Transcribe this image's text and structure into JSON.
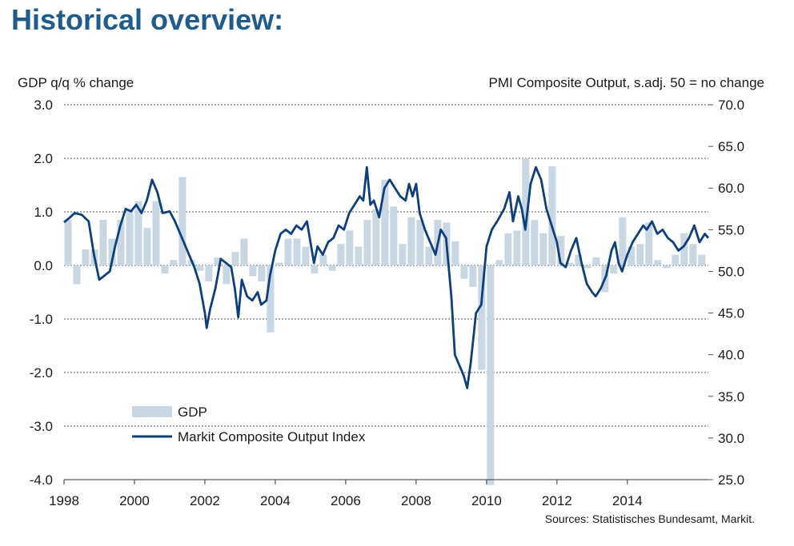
{
  "page": {
    "title": "Historical overview:"
  },
  "colors": {
    "title": "#1f5c8e",
    "gdp_bars": "#c9d7e3",
    "pmi_line": "#0d3f7e",
    "text": "#1a1a1a"
  },
  "chart_data": {
    "type": "bar",
    "left_axis_label": "GDP q/q % change",
    "right_axis_label": "PMI Composite  Output, s.adj. 50 = no change",
    "source": "Sources: Statistisches Bundesamt, Markit.",
    "x_ticks": [
      "1998",
      "2000",
      "2002",
      "2004",
      "2006",
      "2008",
      "2010",
      "2012",
      "2014"
    ],
    "x_range": [
      1998,
      2016.3
    ],
    "y_left": {
      "range": [
        -4.0,
        3.0
      ],
      "ticks": [
        "3.0",
        "2.0",
        "1.0",
        "0.0",
        "-1.0",
        "-2.0",
        "-3.0",
        "-4.0"
      ]
    },
    "y_right": {
      "range": [
        25.0,
        70.0
      ],
      "ticks": [
        "70.0",
        "65.0",
        "60.0",
        "55.0",
        "50.0",
        "45.0",
        "40.0",
        "35.0",
        "30.0",
        "25.0"
      ]
    },
    "grid": "horizontal dashed",
    "legend": {
      "placement": "bottom-left",
      "entries": [
        {
          "key": "gdp",
          "label": "GDP"
        },
        {
          "key": "pmi",
          "label": "Markit Composite Output Index"
        }
      ]
    },
    "series": [
      {
        "key": "gdp",
        "name": "GDP",
        "type": "bar",
        "axis": "left",
        "start": 1998.0,
        "step": 0.25,
        "values": [
          0.85,
          -0.35,
          0.3,
          0.3,
          0.85,
          0.5,
          0.85,
          1.05,
          1.2,
          0.7,
          1.2,
          -0.15,
          0.1,
          1.65,
          0.1,
          -0.1,
          -0.3,
          0.15,
          -0.35,
          0.25,
          0.5,
          -0.2,
          -0.3,
          -1.25,
          0.05,
          0.5,
          0.5,
          0.35,
          -0.15,
          0.2,
          -0.1,
          0.4,
          0.65,
          0.35,
          0.85,
          1.05,
          1.6,
          1.1,
          0.4,
          0.9,
          0.85,
          0.35,
          0.85,
          0.8,
          0.45,
          -0.25,
          -0.4,
          -1.95,
          -4.1,
          0.1,
          0.6,
          0.65,
          2.0,
          0.85,
          0.6,
          1.85,
          0.55,
          0.05,
          0.2,
          -0.05,
          0.15,
          -0.5,
          -0.15,
          0.9,
          0.35,
          0.4,
          0.8,
          0.1,
          -0.05,
          0.2,
          0.6,
          0.4,
          0.2
        ]
      },
      {
        "key": "pmi",
        "name": "Markit Composite Output Index",
        "type": "line",
        "axis": "right",
        "points": [
          [
            1998.0,
            55.9
          ],
          [
            1998.15,
            56.4
          ],
          [
            1998.3,
            57.0
          ],
          [
            1998.5,
            56.8
          ],
          [
            1998.7,
            56.0
          ],
          [
            1998.85,
            52.0
          ],
          [
            1999.0,
            49.0
          ],
          [
            1999.15,
            49.5
          ],
          [
            1999.3,
            50.0
          ],
          [
            1999.45,
            53.0
          ],
          [
            1999.6,
            55.5
          ],
          [
            1999.75,
            57.5
          ],
          [
            1999.9,
            57.2
          ],
          [
            2000.05,
            58.0
          ],
          [
            2000.2,
            57.0
          ],
          [
            2000.35,
            58.5
          ],
          [
            2000.5,
            61.0
          ],
          [
            2000.65,
            59.5
          ],
          [
            2000.8,
            57.0
          ],
          [
            2001.0,
            57.2
          ],
          [
            2001.15,
            56.0
          ],
          [
            2001.3,
            54.5
          ],
          [
            2001.5,
            52.5
          ],
          [
            2001.7,
            50.5
          ],
          [
            2001.85,
            48.5
          ],
          [
            2002.0,
            45.0
          ],
          [
            2002.05,
            43.2
          ],
          [
            2002.15,
            45.5
          ],
          [
            2002.3,
            48.0
          ],
          [
            2002.45,
            51.5
          ],
          [
            2002.6,
            51.0
          ],
          [
            2002.75,
            50.5
          ],
          [
            2002.85,
            48.0
          ],
          [
            2002.95,
            44.5
          ],
          [
            2003.05,
            49.0
          ],
          [
            2003.2,
            47.0
          ],
          [
            2003.35,
            46.5
          ],
          [
            2003.5,
            47.5
          ],
          [
            2003.6,
            46.0
          ],
          [
            2003.75,
            46.5
          ],
          [
            2003.85,
            49.5
          ],
          [
            2004.0,
            52.5
          ],
          [
            2004.15,
            54.5
          ],
          [
            2004.3,
            55.0
          ],
          [
            2004.45,
            54.5
          ],
          [
            2004.6,
            55.5
          ],
          [
            2004.75,
            55.0
          ],
          [
            2004.9,
            56.0
          ],
          [
            2005.0,
            53.5
          ],
          [
            2005.1,
            51.0
          ],
          [
            2005.2,
            53.0
          ],
          [
            2005.35,
            52.0
          ],
          [
            2005.5,
            53.5
          ],
          [
            2005.65,
            54.0
          ],
          [
            2005.8,
            55.5
          ],
          [
            2005.95,
            55.0
          ],
          [
            2006.1,
            57.0
          ],
          [
            2006.25,
            58.0
          ],
          [
            2006.4,
            59.0
          ],
          [
            2006.5,
            58.5
          ],
          [
            2006.6,
            62.5
          ],
          [
            2006.7,
            58.0
          ],
          [
            2006.8,
            58.5
          ],
          [
            2006.95,
            56.5
          ],
          [
            2007.1,
            60.0
          ],
          [
            2007.25,
            61.0
          ],
          [
            2007.4,
            60.0
          ],
          [
            2007.55,
            59.0
          ],
          [
            2007.7,
            58.5
          ],
          [
            2007.8,
            60.5
          ],
          [
            2007.9,
            59.0
          ],
          [
            2008.0,
            60.5
          ],
          [
            2008.1,
            57.0
          ],
          [
            2008.25,
            55.0
          ],
          [
            2008.4,
            53.5
          ],
          [
            2008.55,
            52.0
          ],
          [
            2008.7,
            55.0
          ],
          [
            2008.85,
            54.0
          ],
          [
            2009.0,
            47.0
          ],
          [
            2009.1,
            40.0
          ],
          [
            2009.25,
            38.5
          ],
          [
            2009.35,
            37.5
          ],
          [
            2009.45,
            36.0
          ],
          [
            2009.55,
            39.0
          ],
          [
            2009.7,
            45.0
          ],
          [
            2009.85,
            46.0
          ],
          [
            2010.0,
            53.0
          ],
          [
            2010.15,
            55.0
          ],
          [
            2010.3,
            56.0
          ],
          [
            2010.5,
            57.5
          ],
          [
            2010.65,
            59.5
          ],
          [
            2010.75,
            56.0
          ],
          [
            2010.9,
            59.0
          ],
          [
            2011.0,
            57.5
          ],
          [
            2011.1,
            55.0
          ],
          [
            2011.25,
            60.5
          ],
          [
            2011.4,
            62.5
          ],
          [
            2011.55,
            61.0
          ],
          [
            2011.7,
            57.5
          ],
          [
            2011.85,
            55.5
          ],
          [
            2012.0,
            53.5
          ],
          [
            2012.1,
            51.0
          ],
          [
            2012.25,
            50.5
          ],
          [
            2012.4,
            52.5
          ],
          [
            2012.55,
            54.0
          ],
          [
            2012.7,
            51.0
          ],
          [
            2012.85,
            48.5
          ],
          [
            2013.0,
            47.5
          ],
          [
            2013.1,
            47.0
          ],
          [
            2013.25,
            48.0
          ],
          [
            2013.4,
            49.5
          ],
          [
            2013.55,
            52.5
          ],
          [
            2013.65,
            53.5
          ],
          [
            2013.75,
            51.0
          ],
          [
            2013.85,
            50.0
          ],
          [
            2014.0,
            52.0
          ],
          [
            2014.15,
            53.5
          ],
          [
            2014.3,
            54.5
          ],
          [
            2014.45,
            55.5
          ],
          [
            2014.55,
            55.0
          ],
          [
            2014.7,
            56.0
          ],
          [
            2014.85,
            54.5
          ],
          [
            2015.0,
            55.0
          ],
          [
            2015.15,
            54.0
          ],
          [
            2015.3,
            53.5
          ],
          [
            2015.45,
            52.5
          ],
          [
            2015.6,
            53.0
          ],
          [
            2015.75,
            54.0
          ],
          [
            2015.9,
            55.5
          ],
          [
            2016.05,
            53.5
          ],
          [
            2016.2,
            54.5
          ],
          [
            2016.3,
            54.0
          ]
        ]
      }
    ]
  }
}
